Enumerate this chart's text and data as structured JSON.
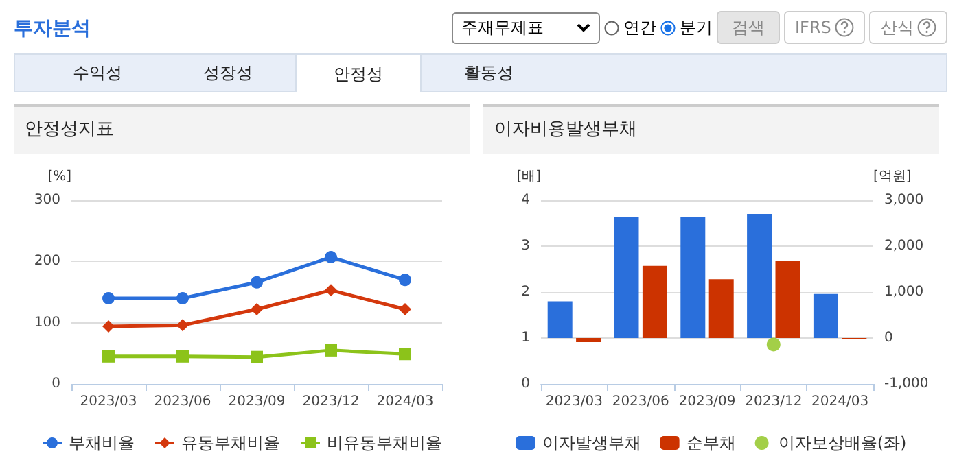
{
  "chart_data": [
    {
      "type": "other",
      "title": "투자분석",
      "annotations": [
        "주재무제표",
        "연간",
        "분기",
        "검색",
        "IFRS",
        "산식",
        "수익성",
        "성장성",
        "안정성",
        "활동성"
      ]
    },
    {
      "type": "line",
      "title": "안정성지표",
      "ylabel": "[%]",
      "categories": [
        "2023/03",
        "2023/06",
        "2023/09",
        "2023/12",
        "2024/03"
      ],
      "ylim": [
        0,
        300
      ],
      "yticks": [
        0,
        100,
        200,
        300
      ],
      "grid": "y",
      "legend": "bottom",
      "series": [
        {
          "name": "부채비율",
          "color": "#2a6fdb",
          "marker": "circle",
          "values": [
            140,
            140,
            166,
            207,
            170
          ]
        },
        {
          "name": "유동부채비율",
          "color": "#d4380d",
          "marker": "diamond",
          "values": [
            94,
            96,
            122,
            153,
            122
          ]
        },
        {
          "name": "비유동부채비율",
          "color": "#8cc31a",
          "marker": "square",
          "values": [
            45,
            45,
            44,
            55,
            49
          ]
        }
      ]
    },
    {
      "type": "bar",
      "title": "이자비용발생부채",
      "ylabel": "[배]",
      "y2label": "[억원]",
      "categories": [
        "2023/03",
        "2023/06",
        "2023/09",
        "2023/12",
        "2024/03"
      ],
      "ylim": [
        0,
        4
      ],
      "yticks": [
        0,
        1,
        2,
        3,
        4
      ],
      "y2lim": [
        -1000,
        3000
      ],
      "y2ticks": [
        {
          "value": -1000,
          "label": "-1,000"
        },
        0,
        {
          "value": 1000,
          "label": "1,000"
        },
        {
          "value": 2000,
          "label": "2,000"
        },
        {
          "value": 3000,
          "label": "3,000"
        }
      ],
      "grid": "y",
      "legend": "bottom",
      "series": [
        {
          "name": "이자발생부채",
          "color": "#2a6fdb",
          "axis": "y2",
          "values": [
            800,
            2630,
            2630,
            2700,
            960
          ]
        },
        {
          "name": "순부채",
          "color": "#cc3300",
          "axis": "y2",
          "values": [
            -90,
            1570,
            1280,
            1680,
            -30
          ]
        },
        {
          "name": "이자보상배율(좌)",
          "type": "scatter",
          "color": "#8cc31a",
          "marker": "circle",
          "values": [
            null,
            null,
            null,
            0.86,
            null
          ]
        }
      ]
    }
  ]
}
